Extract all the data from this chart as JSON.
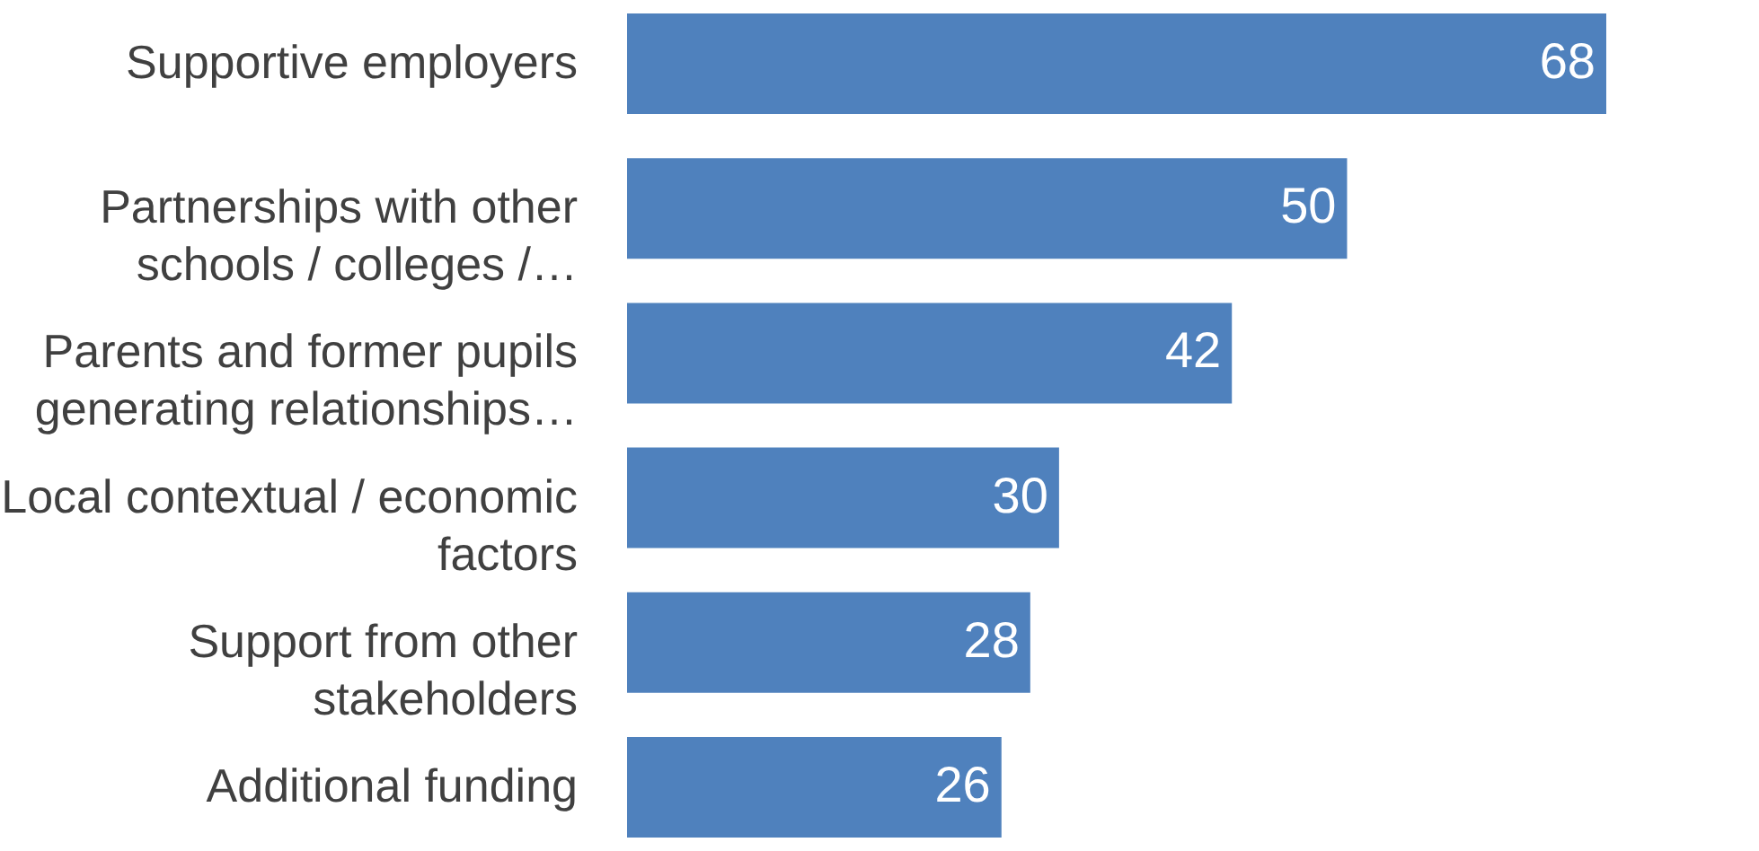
{
  "chart_data": {
    "type": "bar",
    "orientation": "horizontal",
    "categories": [
      "Supportive employers",
      "Partnerships with other schools / colleges /…",
      "Parents and former pupils generating relationships…",
      "Local contextual / economic factors",
      "Support from other stakeholders",
      "Additional funding"
    ],
    "values": [
      68,
      50,
      42,
      30,
      28,
      26
    ],
    "color": "#4f81bd",
    "data_labels": true
  }
}
